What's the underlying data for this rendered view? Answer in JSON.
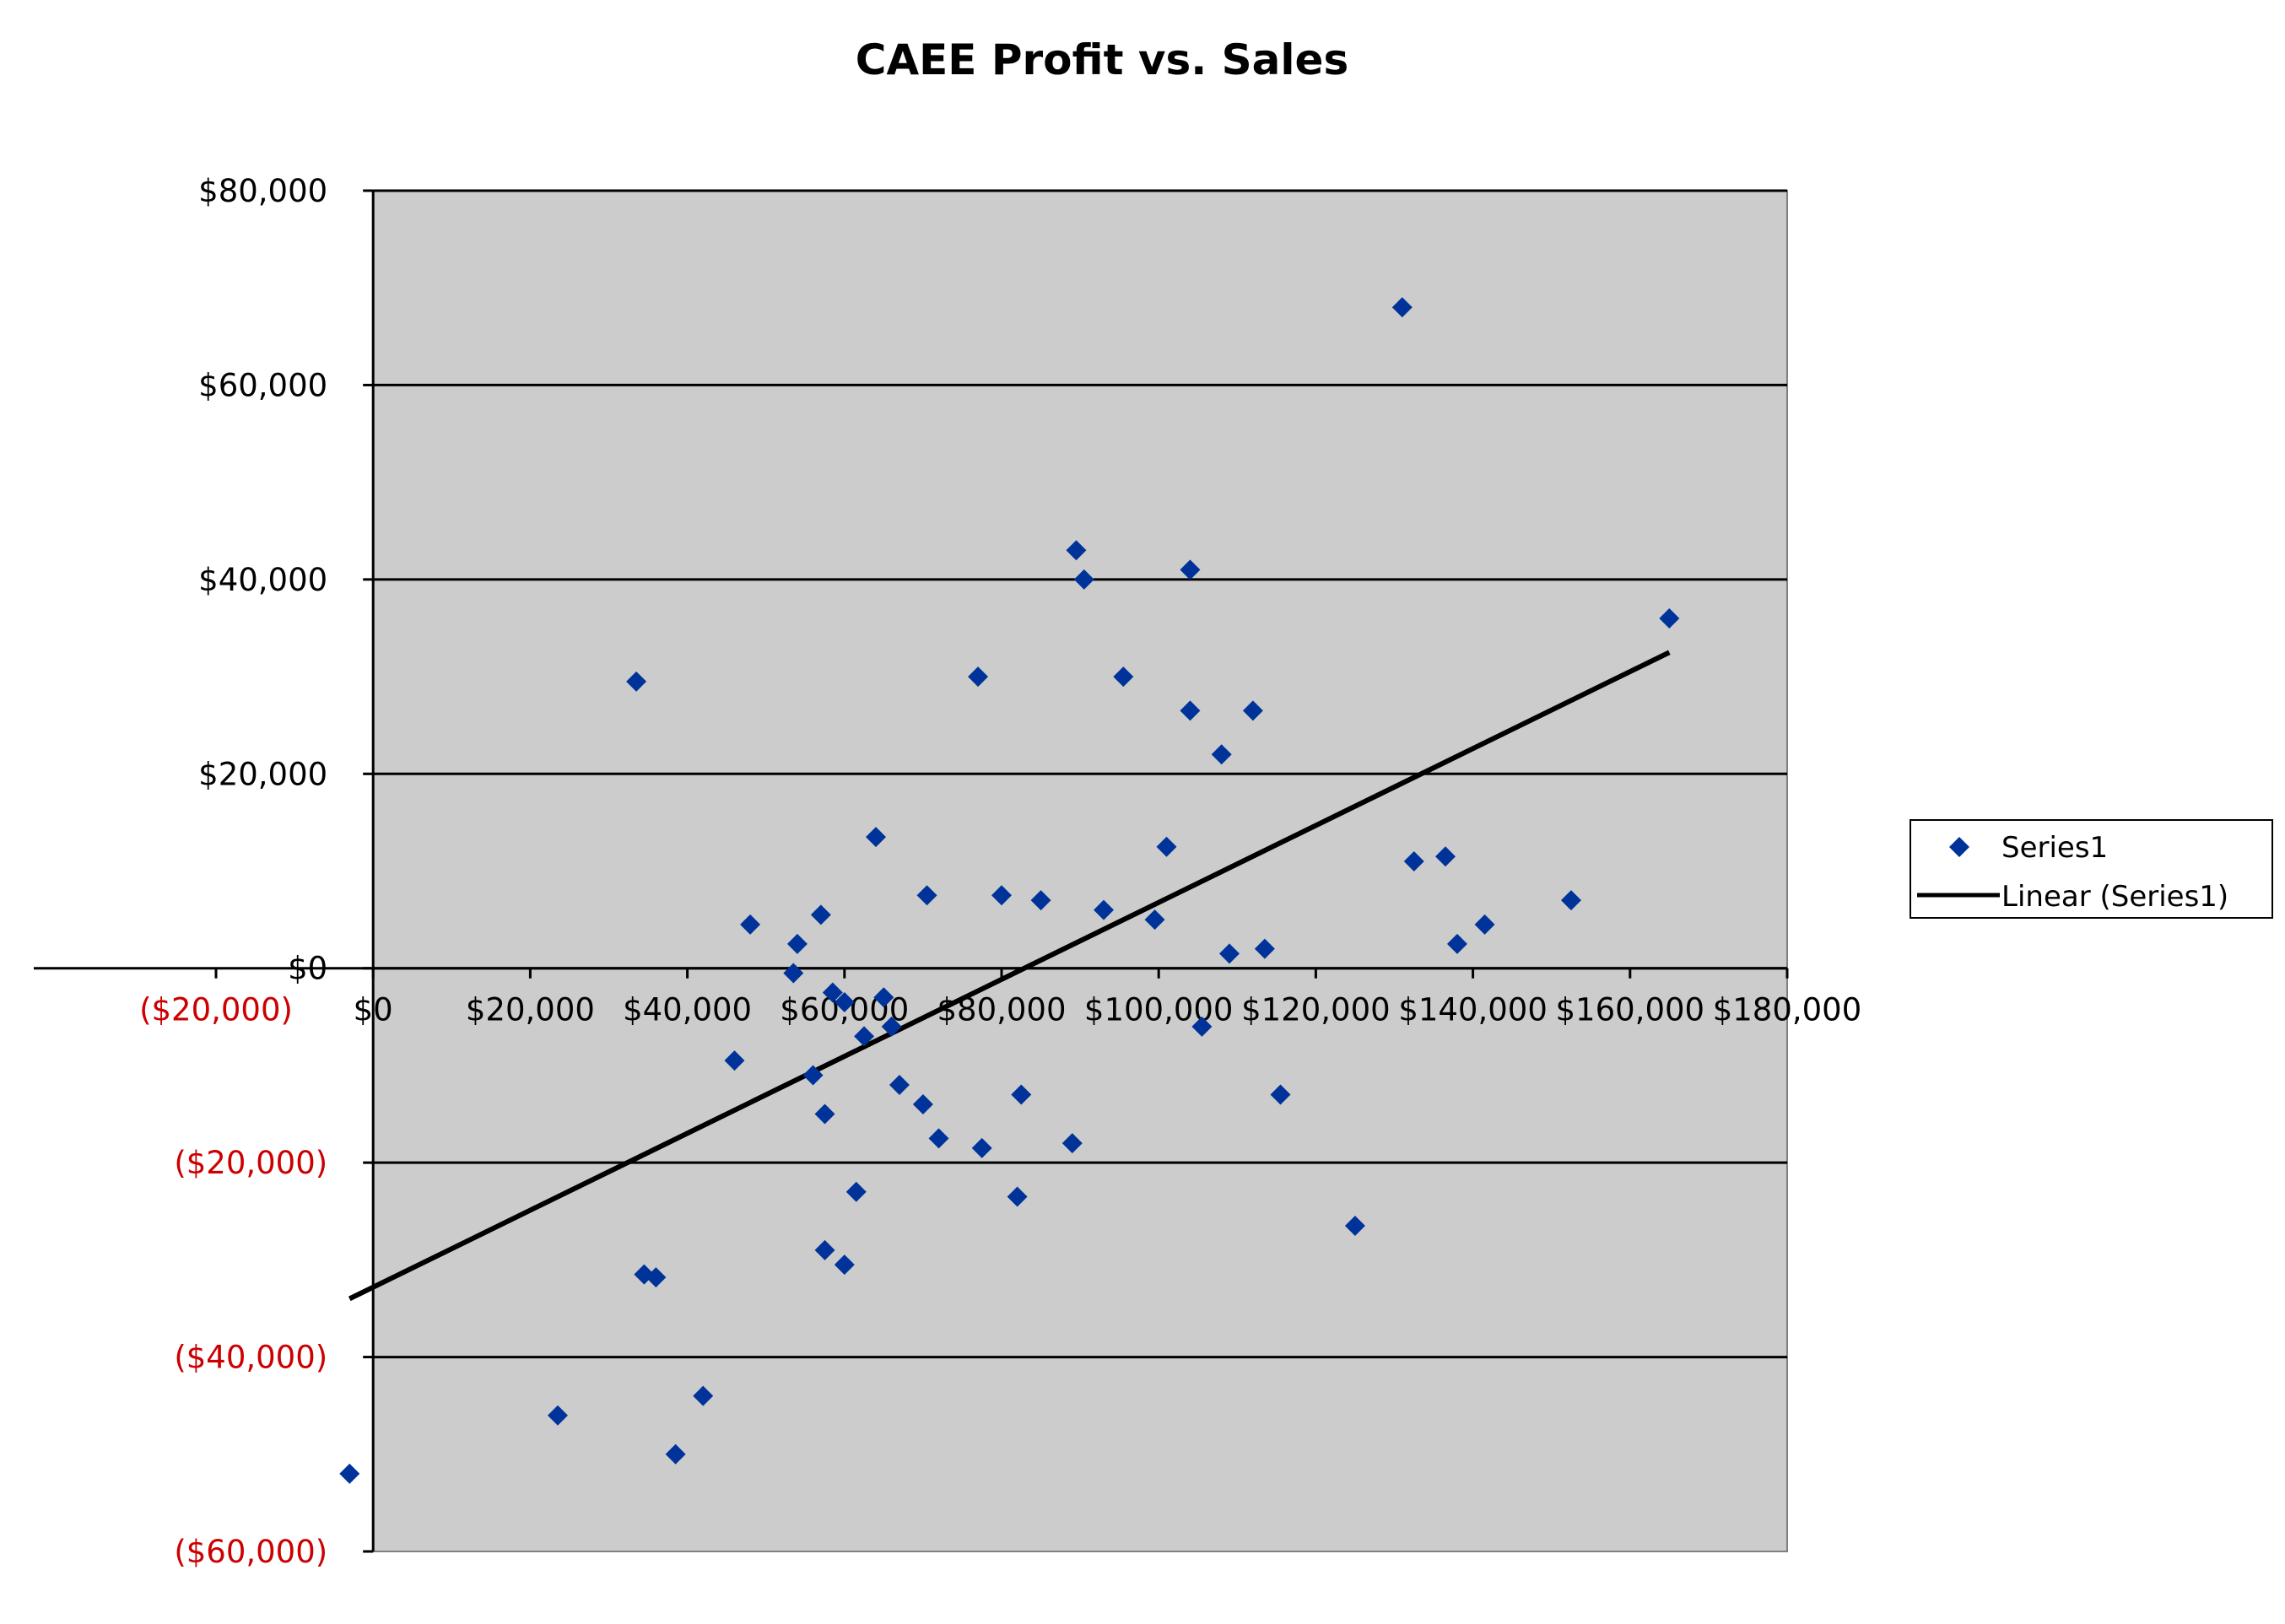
{
  "chart_data": {
    "type": "scatter",
    "title": "CAEE Profit vs. Sales",
    "xlabel": "",
    "ylabel": "",
    "xlim": [
      -20000,
      180000
    ],
    "ylim": [
      -60000,
      80000
    ],
    "x_ticks": [
      -20000,
      0,
      20000,
      40000,
      60000,
      80000,
      100000,
      120000,
      140000,
      160000,
      180000
    ],
    "y_ticks": [
      -60000,
      -40000,
      -20000,
      0,
      20000,
      40000,
      60000,
      80000
    ],
    "x_tick_labels": [
      "($20,000)",
      "$0",
      "$20,000",
      "$40,000",
      "$60,000",
      "$80,000",
      "$100,000",
      "$120,000",
      "$140,000",
      "$160,000",
      "$180,000"
    ],
    "y_tick_labels": [
      "($60,000)",
      "($40,000)",
      "($20,000)",
      "$0",
      "$20,000",
      "$40,000",
      "$60,000",
      "$80,000"
    ],
    "grid": "horizontal",
    "plot_background": "#cccccc",
    "negative_label_color": "#cc0000",
    "legend": {
      "placement": "right",
      "entries": [
        "Series1",
        "Linear (Series1)"
      ]
    },
    "series": [
      {
        "name": "Series1",
        "marker": "diamond",
        "color": "#003399",
        "points": [
          [
            -3000,
            -52000
          ],
          [
            23500,
            -46000
          ],
          [
            33500,
            29500
          ],
          [
            34500,
            -31500
          ],
          [
            36000,
            -31800
          ],
          [
            38500,
            -50000
          ],
          [
            42000,
            -44000
          ],
          [
            46000,
            -9500
          ],
          [
            48000,
            4500
          ],
          [
            53500,
            -500
          ],
          [
            54000,
            2500
          ],
          [
            56000,
            -11000
          ],
          [
            57000,
            5500
          ],
          [
            57500,
            -15000
          ],
          [
            57500,
            -29000
          ],
          [
            58500,
            -2500
          ],
          [
            60000,
            -3500
          ],
          [
            60000,
            -30500
          ],
          [
            61500,
            -23000
          ],
          [
            62500,
            -7000
          ],
          [
            64000,
            13500
          ],
          [
            65000,
            -3000
          ],
          [
            66000,
            -6000
          ],
          [
            67000,
            -12000
          ],
          [
            70000,
            -14000
          ],
          [
            70500,
            7500
          ],
          [
            72000,
            -17500
          ],
          [
            77000,
            30000
          ],
          [
            77500,
            -18500
          ],
          [
            80000,
            7500
          ],
          [
            82000,
            -23500
          ],
          [
            82500,
            -13000
          ],
          [
            85000,
            7000
          ],
          [
            89000,
            -18000
          ],
          [
            89500,
            43000
          ],
          [
            90500,
            40000
          ],
          [
            93000,
            6000
          ],
          [
            95500,
            30000
          ],
          [
            99500,
            5000
          ],
          [
            101000,
            12500
          ],
          [
            104000,
            41000
          ],
          [
            104000,
            26500
          ],
          [
            105500,
            -6000
          ],
          [
            108000,
            22000
          ],
          [
            109000,
            1500
          ],
          [
            112000,
            26500
          ],
          [
            113500,
            2000
          ],
          [
            115500,
            -13000
          ],
          [
            125000,
            -26500
          ],
          [
            131000,
            68000
          ],
          [
            132500,
            11000
          ],
          [
            136500,
            11500
          ],
          [
            138000,
            2500
          ],
          [
            141500,
            4500
          ],
          [
            152500,
            7000
          ],
          [
            165000,
            36000
          ]
        ]
      },
      {
        "name": "Linear (Series1)",
        "type": "line",
        "color": "#000000",
        "points": [
          [
            -3000,
            -34000
          ],
          [
            165000,
            32500
          ]
        ]
      }
    ]
  }
}
